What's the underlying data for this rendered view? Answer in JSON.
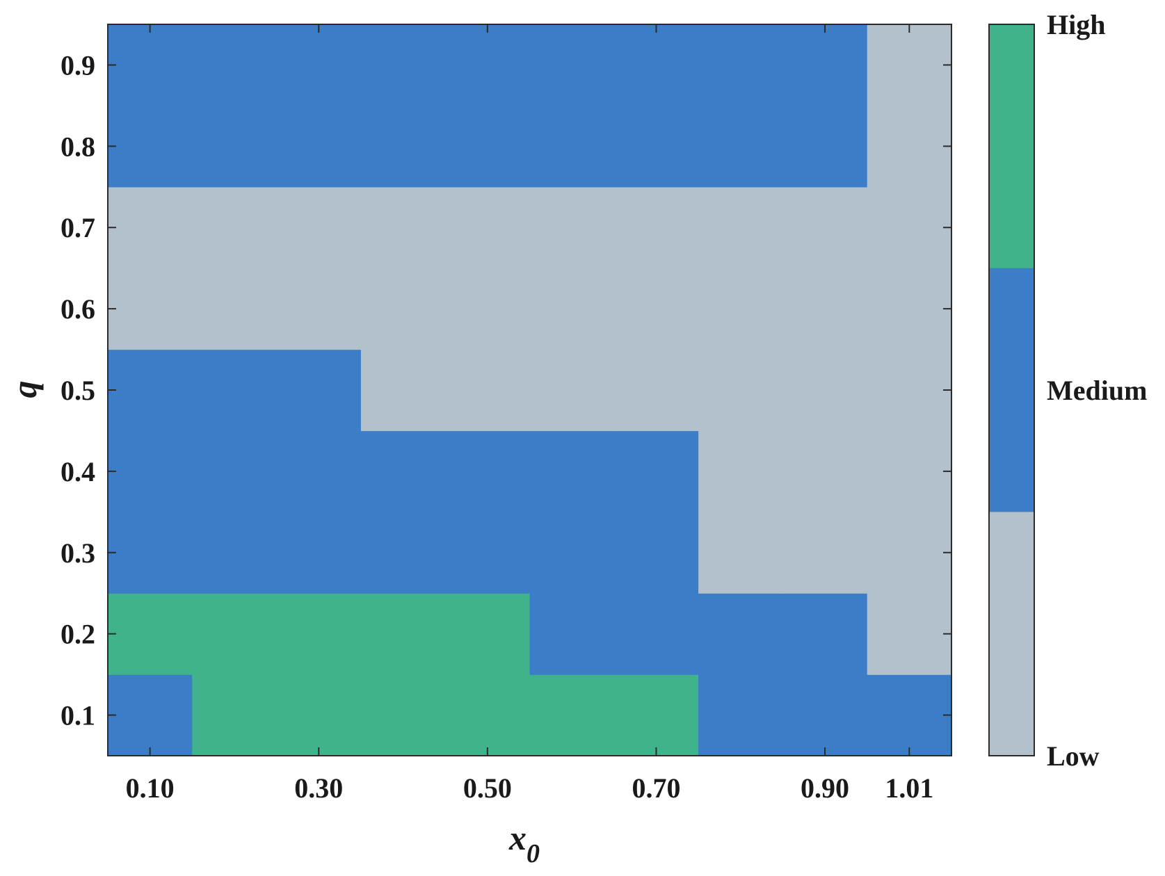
{
  "chart_data": {
    "type": "heatmap",
    "xlabel": "x",
    "xlabel_sub": "0",
    "ylabel": "q",
    "x_tick_labels": [
      "0.10",
      "0.30",
      "0.50",
      "0.70",
      "0.90",
      "1.01"
    ],
    "y_tick_labels": [
      "0.1",
      "0.2",
      "0.3",
      "0.4",
      "0.5",
      "0.6",
      "0.7",
      "0.8",
      "0.9"
    ],
    "x_cols": [
      "0.10",
      "0.20",
      "0.30",
      "0.40",
      "0.50",
      "0.60",
      "0.70",
      "0.80",
      "0.90",
      "1.01"
    ],
    "y_rows": [
      "0.1",
      "0.2",
      "0.3",
      "0.4",
      "0.5",
      "0.6",
      "0.7",
      "0.8",
      "0.9"
    ],
    "colorbar": {
      "levels": [
        "Low",
        "Medium",
        "High"
      ],
      "colors": [
        "#b3c1cd",
        "#3b7dc6",
        "#40b38b"
      ],
      "labels_top_to_bottom": [
        "High",
        "Medium",
        "Low"
      ]
    },
    "grid": [
      [
        "Medium",
        "High",
        "High",
        "High",
        "High",
        "High",
        "High",
        "Medium",
        "Medium",
        "Medium"
      ],
      [
        "High",
        "High",
        "High",
        "High",
        "High",
        "Medium",
        "Medium",
        "Medium",
        "Medium",
        "Low"
      ],
      [
        "Medium",
        "Medium",
        "Medium",
        "Medium",
        "Medium",
        "Medium",
        "Medium",
        "Low",
        "Low",
        "Low"
      ],
      [
        "Medium",
        "Medium",
        "Medium",
        "Medium",
        "Medium",
        "Medium",
        "Medium",
        "Low",
        "Low",
        "Low"
      ],
      [
        "Medium",
        "Medium",
        "Medium",
        "Low",
        "Low",
        "Low",
        "Low",
        "Low",
        "Low",
        "Low"
      ],
      [
        "Low",
        "Low",
        "Low",
        "Low",
        "Low",
        "Low",
        "Low",
        "Low",
        "Low",
        "Low"
      ],
      [
        "Low",
        "Low",
        "Low",
        "Low",
        "Low",
        "Low",
        "Low",
        "Low",
        "Low",
        "Low"
      ],
      [
        "Medium",
        "Medium",
        "Medium",
        "Medium",
        "Medium",
        "Medium",
        "Medium",
        "Medium",
        "Medium",
        "Low"
      ],
      [
        "Medium",
        "Medium",
        "Medium",
        "Medium",
        "Medium",
        "Medium",
        "Medium",
        "Medium",
        "Medium",
        "Low"
      ]
    ]
  }
}
